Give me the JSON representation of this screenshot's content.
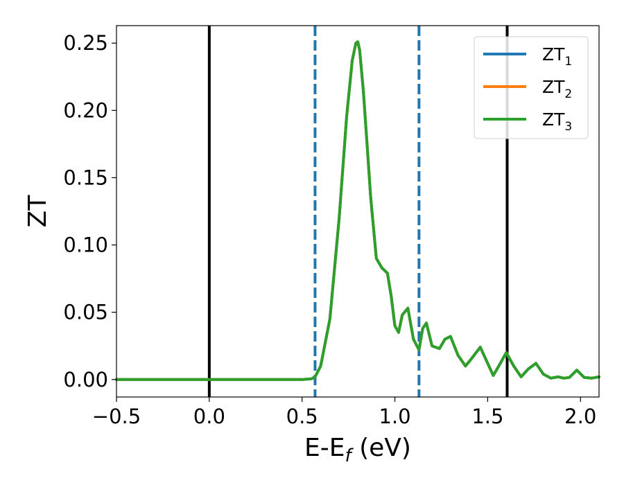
{
  "chart_data": {
    "type": "line",
    "xlabel": "E-E",
    "xlabel_subscript": "f",
    "xlabel_unit": " (eV)",
    "ylabel": "ZT",
    "xlim": [
      -0.5,
      2.1
    ],
    "ylim": [
      -0.013,
      0.263
    ],
    "x_ticks": [
      -0.5,
      0.0,
      0.5,
      1.0,
      1.5,
      2.0
    ],
    "x_tick_labels": [
      "−0.5",
      "0.0",
      "0.5",
      "1.0",
      "1.5",
      "2.0"
    ],
    "y_ticks": [
      0.0,
      0.05,
      0.1,
      0.15,
      0.2,
      0.25
    ],
    "y_tick_labels": [
      "0.00",
      "0.05",
      "0.10",
      "0.15",
      "0.20",
      "0.25"
    ],
    "grid": false,
    "legend": "top-right",
    "vertical_lines": [
      {
        "x": 0.0,
        "style": "solid",
        "color": "#000000"
      },
      {
        "x": 1.605,
        "style": "solid",
        "color": "#000000"
      },
      {
        "x": 0.57,
        "style": "dashed",
        "color": "#1f77b4"
      },
      {
        "x": 1.13,
        "style": "dashed",
        "color": "#1f77b4"
      }
    ],
    "series": [
      {
        "name": "ZT",
        "subscript": "1",
        "color": "#1f77b4"
      },
      {
        "name": "ZT",
        "subscript": "2",
        "color": "#ff7f0e"
      },
      {
        "name": "ZT",
        "subscript": "3",
        "color": "#2ca02c"
      }
    ],
    "x": [
      -0.5,
      0.0,
      0.4,
      0.5,
      0.55,
      0.57,
      0.6,
      0.65,
      0.7,
      0.74,
      0.77,
      0.79,
      0.8,
      0.81,
      0.83,
      0.85,
      0.87,
      0.9,
      0.93,
      0.96,
      0.98,
      1.0,
      1.02,
      1.04,
      1.07,
      1.1,
      1.13,
      1.15,
      1.17,
      1.2,
      1.24,
      1.27,
      1.3,
      1.34,
      1.38,
      1.41,
      1.46,
      1.5,
      1.53,
      1.56,
      1.6,
      1.64,
      1.68,
      1.72,
      1.76,
      1.8,
      1.84,
      1.88,
      1.91,
      1.94,
      1.98,
      2.02,
      2.06,
      2.1
    ],
    "values": [
      0.0,
      0.0,
      0.0,
      0.0,
      0.0005,
      0.002,
      0.01,
      0.045,
      0.12,
      0.195,
      0.237,
      0.25,
      0.251,
      0.245,
      0.215,
      0.175,
      0.135,
      0.09,
      0.083,
      0.079,
      0.062,
      0.04,
      0.035,
      0.048,
      0.053,
      0.03,
      0.022,
      0.038,
      0.042,
      0.025,
      0.023,
      0.03,
      0.032,
      0.018,
      0.01,
      0.015,
      0.024,
      0.012,
      0.003,
      0.01,
      0.02,
      0.01,
      0.002,
      0.008,
      0.012,
      0.004,
      0.001,
      0.002,
      0.001,
      0.0015,
      0.007,
      0.0015,
      0.001,
      0.002
    ]
  }
}
